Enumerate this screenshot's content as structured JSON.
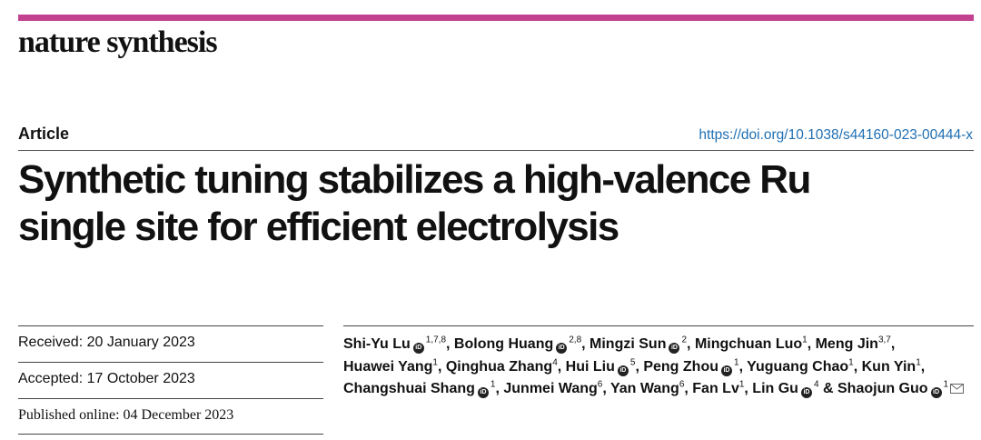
{
  "journal": {
    "name": "nature synthesis",
    "accent_color": "#c2428f"
  },
  "header": {
    "article_type": "Article",
    "doi_link": "https://doi.org/10.1038/s44160-023-00444-x"
  },
  "title": {
    "line1": "Synthetic tuning stabilizes a high-valence Ru",
    "line2": "single site for efficient electrolysis"
  },
  "dates": {
    "received": "Received: 20 January 2023",
    "accepted": "Accepted: 17 October 2023",
    "published": "Published online: 04 December 2023"
  },
  "authors": [
    {
      "name": "Shi-Yu Lu",
      "orcid": true,
      "aff": "1,7,8"
    },
    {
      "name": "Bolong Huang",
      "orcid": true,
      "aff": "2,8"
    },
    {
      "name": "Mingzi Sun",
      "orcid": true,
      "aff": "2"
    },
    {
      "name": "Mingchuan Luo",
      "orcid": false,
      "aff": "1"
    },
    {
      "name": "Meng Jin",
      "orcid": false,
      "aff": "3,7"
    },
    {
      "name": "Huawei Yang",
      "orcid": false,
      "aff": "1"
    },
    {
      "name": "Qinghua Zhang",
      "orcid": false,
      "aff": "4"
    },
    {
      "name": "Hui Liu",
      "orcid": true,
      "aff": "5"
    },
    {
      "name": "Peng Zhou",
      "orcid": true,
      "aff": "1"
    },
    {
      "name": "Yuguang Chao",
      "orcid": false,
      "aff": "1"
    },
    {
      "name": "Kun Yin",
      "orcid": false,
      "aff": "1"
    },
    {
      "name": "Changshuai Shang",
      "orcid": true,
      "aff": "1"
    },
    {
      "name": "Junmei Wang",
      "orcid": false,
      "aff": "6"
    },
    {
      "name": "Yan Wang",
      "orcid": false,
      "aff": "6"
    },
    {
      "name": "Fan Lv",
      "orcid": false,
      "aff": "1"
    },
    {
      "name": "Lin Gu",
      "orcid": true,
      "aff": "4"
    },
    {
      "name": "Shaojun Guo",
      "orcid": true,
      "aff": "1",
      "corresponding": true
    }
  ],
  "author_conjunction": "&",
  "icons": {
    "orcid": "orcid-icon",
    "orcid_glyph": "iD",
    "correspondence": "envelope-icon"
  }
}
